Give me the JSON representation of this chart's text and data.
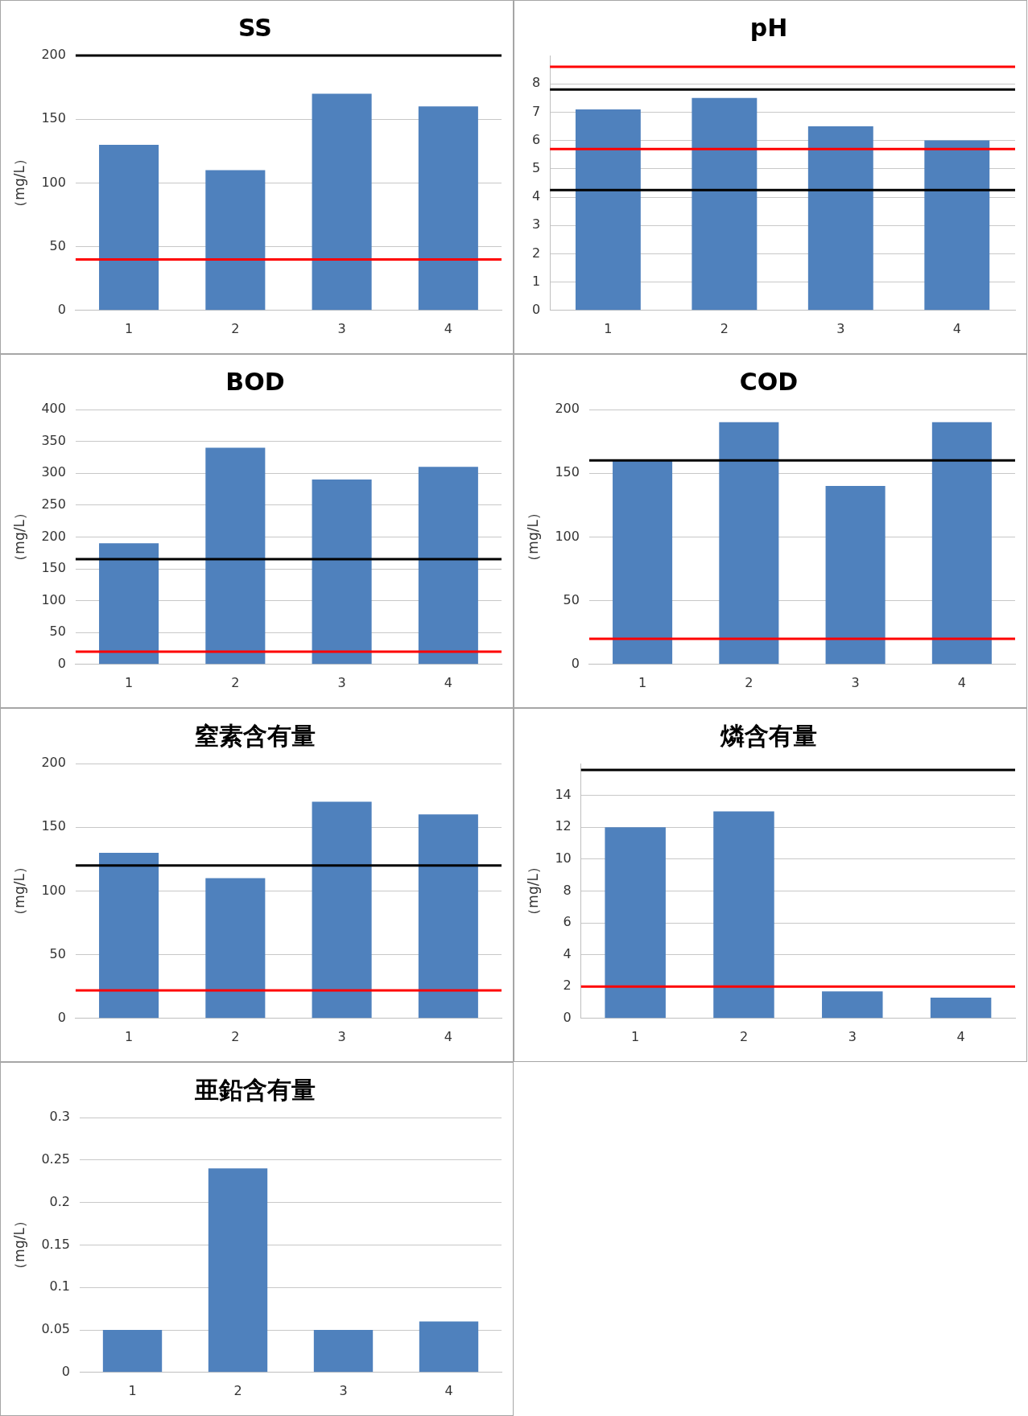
{
  "chart_data": [
    {
      "type": "bar",
      "title": "SS",
      "ylabel": "（mg/L）",
      "categories": [
        "1",
        "2",
        "3",
        "4"
      ],
      "values": [
        130,
        110,
        170,
        160
      ],
      "color": "#4f81bd",
      "ylim": [
        0,
        200
      ],
      "yticks": [
        0,
        50,
        100,
        150,
        200
      ],
      "grid": "y",
      "ref_lines": [
        {
          "axis": "y",
          "value": 200,
          "color": "#000000"
        },
        {
          "axis": "y",
          "value": 40,
          "color": "#ff0000"
        }
      ]
    },
    {
      "type": "bar",
      "title": "pH",
      "categories": [
        "1",
        "2",
        "3",
        "4"
      ],
      "values": [
        7.1,
        7.5,
        6.5,
        6.0
      ],
      "color": "#4f81bd",
      "ylim": [
        0,
        9
      ],
      "yticks": [
        0,
        1,
        2,
        3,
        4,
        5,
        6,
        7,
        8
      ],
      "grid": "y",
      "ref_lines": [
        {
          "axis": "y",
          "value": 8.6,
          "color": "#ff0000"
        },
        {
          "axis": "y",
          "value": 7.8,
          "color": "#000000"
        },
        {
          "axis": "y",
          "value": 5.7,
          "color": "#ff0000"
        },
        {
          "axis": "y",
          "value": 4.25,
          "color": "#000000"
        }
      ]
    },
    {
      "type": "bar",
      "title": "BOD",
      "ylabel": "（mg/L）",
      "categories": [
        "1",
        "2",
        "3",
        "4"
      ],
      "values": [
        190,
        340,
        290,
        310
      ],
      "color": "#4f81bd",
      "ylim": [
        0,
        400
      ],
      "yticks": [
        0,
        50,
        100,
        150,
        200,
        250,
        300,
        350,
        400
      ],
      "grid": "y",
      "ref_lines": [
        {
          "axis": "y",
          "value": 165,
          "color": "#000000"
        },
        {
          "axis": "y",
          "value": 20,
          "color": "#ff0000"
        }
      ]
    },
    {
      "type": "bar",
      "title": "COD",
      "ylabel": "（mg/L）",
      "categories": [
        "1",
        "2",
        "3",
        "4"
      ],
      "values": [
        160,
        190,
        140,
        190
      ],
      "color": "#4f81bd",
      "ylim": [
        0,
        200
      ],
      "yticks": [
        0,
        50,
        100,
        150,
        200
      ],
      "grid": "y",
      "ref_lines": [
        {
          "axis": "y",
          "value": 160,
          "color": "#000000"
        },
        {
          "axis": "y",
          "value": 20,
          "color": "#ff0000"
        }
      ]
    },
    {
      "type": "bar",
      "title": "窒素含有量",
      "ylabel": "（mg/L）",
      "categories": [
        "1",
        "2",
        "3",
        "4"
      ],
      "values": [
        130,
        110,
        170,
        160
      ],
      "color": "#4f81bd",
      "ylim": [
        0,
        200
      ],
      "yticks": [
        0,
        50,
        100,
        150,
        200
      ],
      "grid": "y",
      "ref_lines": [
        {
          "axis": "y",
          "value": 120,
          "color": "#000000"
        },
        {
          "axis": "y",
          "value": 22,
          "color": "#ff0000"
        }
      ]
    },
    {
      "type": "bar",
      "title": "燐含有量",
      "ylabel": "（mg/L）",
      "categories": [
        "1",
        "2",
        "3",
        "4"
      ],
      "values": [
        12,
        13,
        1.7,
        1.3
      ],
      "color": "#4f81bd",
      "ylim": [
        0,
        16
      ],
      "yticks": [
        0,
        2,
        4,
        6,
        8,
        10,
        12,
        14
      ],
      "grid": "y",
      "ref_lines": [
        {
          "axis": "y",
          "value": 15.6,
          "color": "#000000"
        },
        {
          "axis": "y",
          "value": 2,
          "color": "#ff0000"
        }
      ]
    },
    {
      "type": "bar",
      "title": "亜鉛含有量",
      "ylabel": "（mg/L）",
      "categories": [
        "1",
        "2",
        "3",
        "4"
      ],
      "values": [
        0.05,
        0.24,
        0.05,
        0.06
      ],
      "color": "#4f81bd",
      "ylim": [
        0,
        0.3
      ],
      "yticks": [
        0,
        0.05,
        0.1,
        0.15,
        0.2,
        0.25,
        0.3
      ],
      "grid": "y"
    }
  ]
}
